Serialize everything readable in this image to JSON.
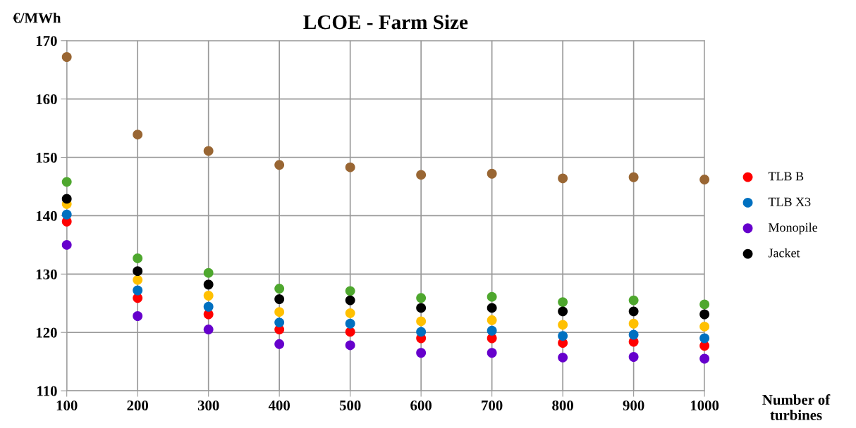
{
  "chart_data": {
    "type": "scatter",
    "title": "LCOE - Farm Size",
    "ylabel": "€/MWh",
    "xlabel": "Number of turbines",
    "x": [
      100,
      200,
      300,
      400,
      500,
      600,
      700,
      800,
      900,
      1000
    ],
    "xlim": [
      100,
      1000
    ],
    "xticks": [
      100,
      200,
      300,
      400,
      500,
      600,
      700,
      800,
      900,
      1000
    ],
    "ylim": [
      110,
      170
    ],
    "yticks": [
      110,
      120,
      130,
      140,
      150,
      160,
      170
    ],
    "grid": true,
    "legend": "right",
    "marker": "circle",
    "series": [
      {
        "name": "TLB B",
        "color": "#ff0000",
        "values": [
          139,
          125.9,
          123.1,
          120.5,
          120.1,
          119,
          119,
          118.2,
          118.4,
          117.7
        ]
      },
      {
        "name": "TLB X3",
        "color": "#0070c0",
        "values": [
          140.2,
          127.2,
          124.4,
          121.7,
          121.5,
          120.1,
          120.3,
          119.4,
          119.6,
          119
        ]
      },
      {
        "color": "#4ea72e",
        "values": [
          145.8,
          132.7,
          130.2,
          127.5,
          127.1,
          125.9,
          126.1,
          125.2,
          125.5,
          124.8
        ]
      },
      {
        "color": "#996633",
        "values": [
          167.2,
          153.9,
          151.1,
          148.7,
          148.3,
          147,
          147.2,
          146.4,
          146.6,
          146.2
        ]
      },
      {
        "color": "#ffc000",
        "values": [
          142,
          129,
          126.3,
          123.5,
          123.3,
          121.9,
          122.1,
          121.3,
          121.5,
          121
        ]
      },
      {
        "name": "Monopile",
        "color": "#6600cc",
        "values": [
          135,
          122.8,
          120.5,
          118,
          117.8,
          116.5,
          116.5,
          115.7,
          115.8,
          115.5
        ]
      },
      {
        "name": "Jacket",
        "color": "#000000",
        "values": [
          142.9,
          130.5,
          128.2,
          125.7,
          125.5,
          124.2,
          124.2,
          123.6,
          123.6,
          123.1
        ]
      }
    ]
  }
}
